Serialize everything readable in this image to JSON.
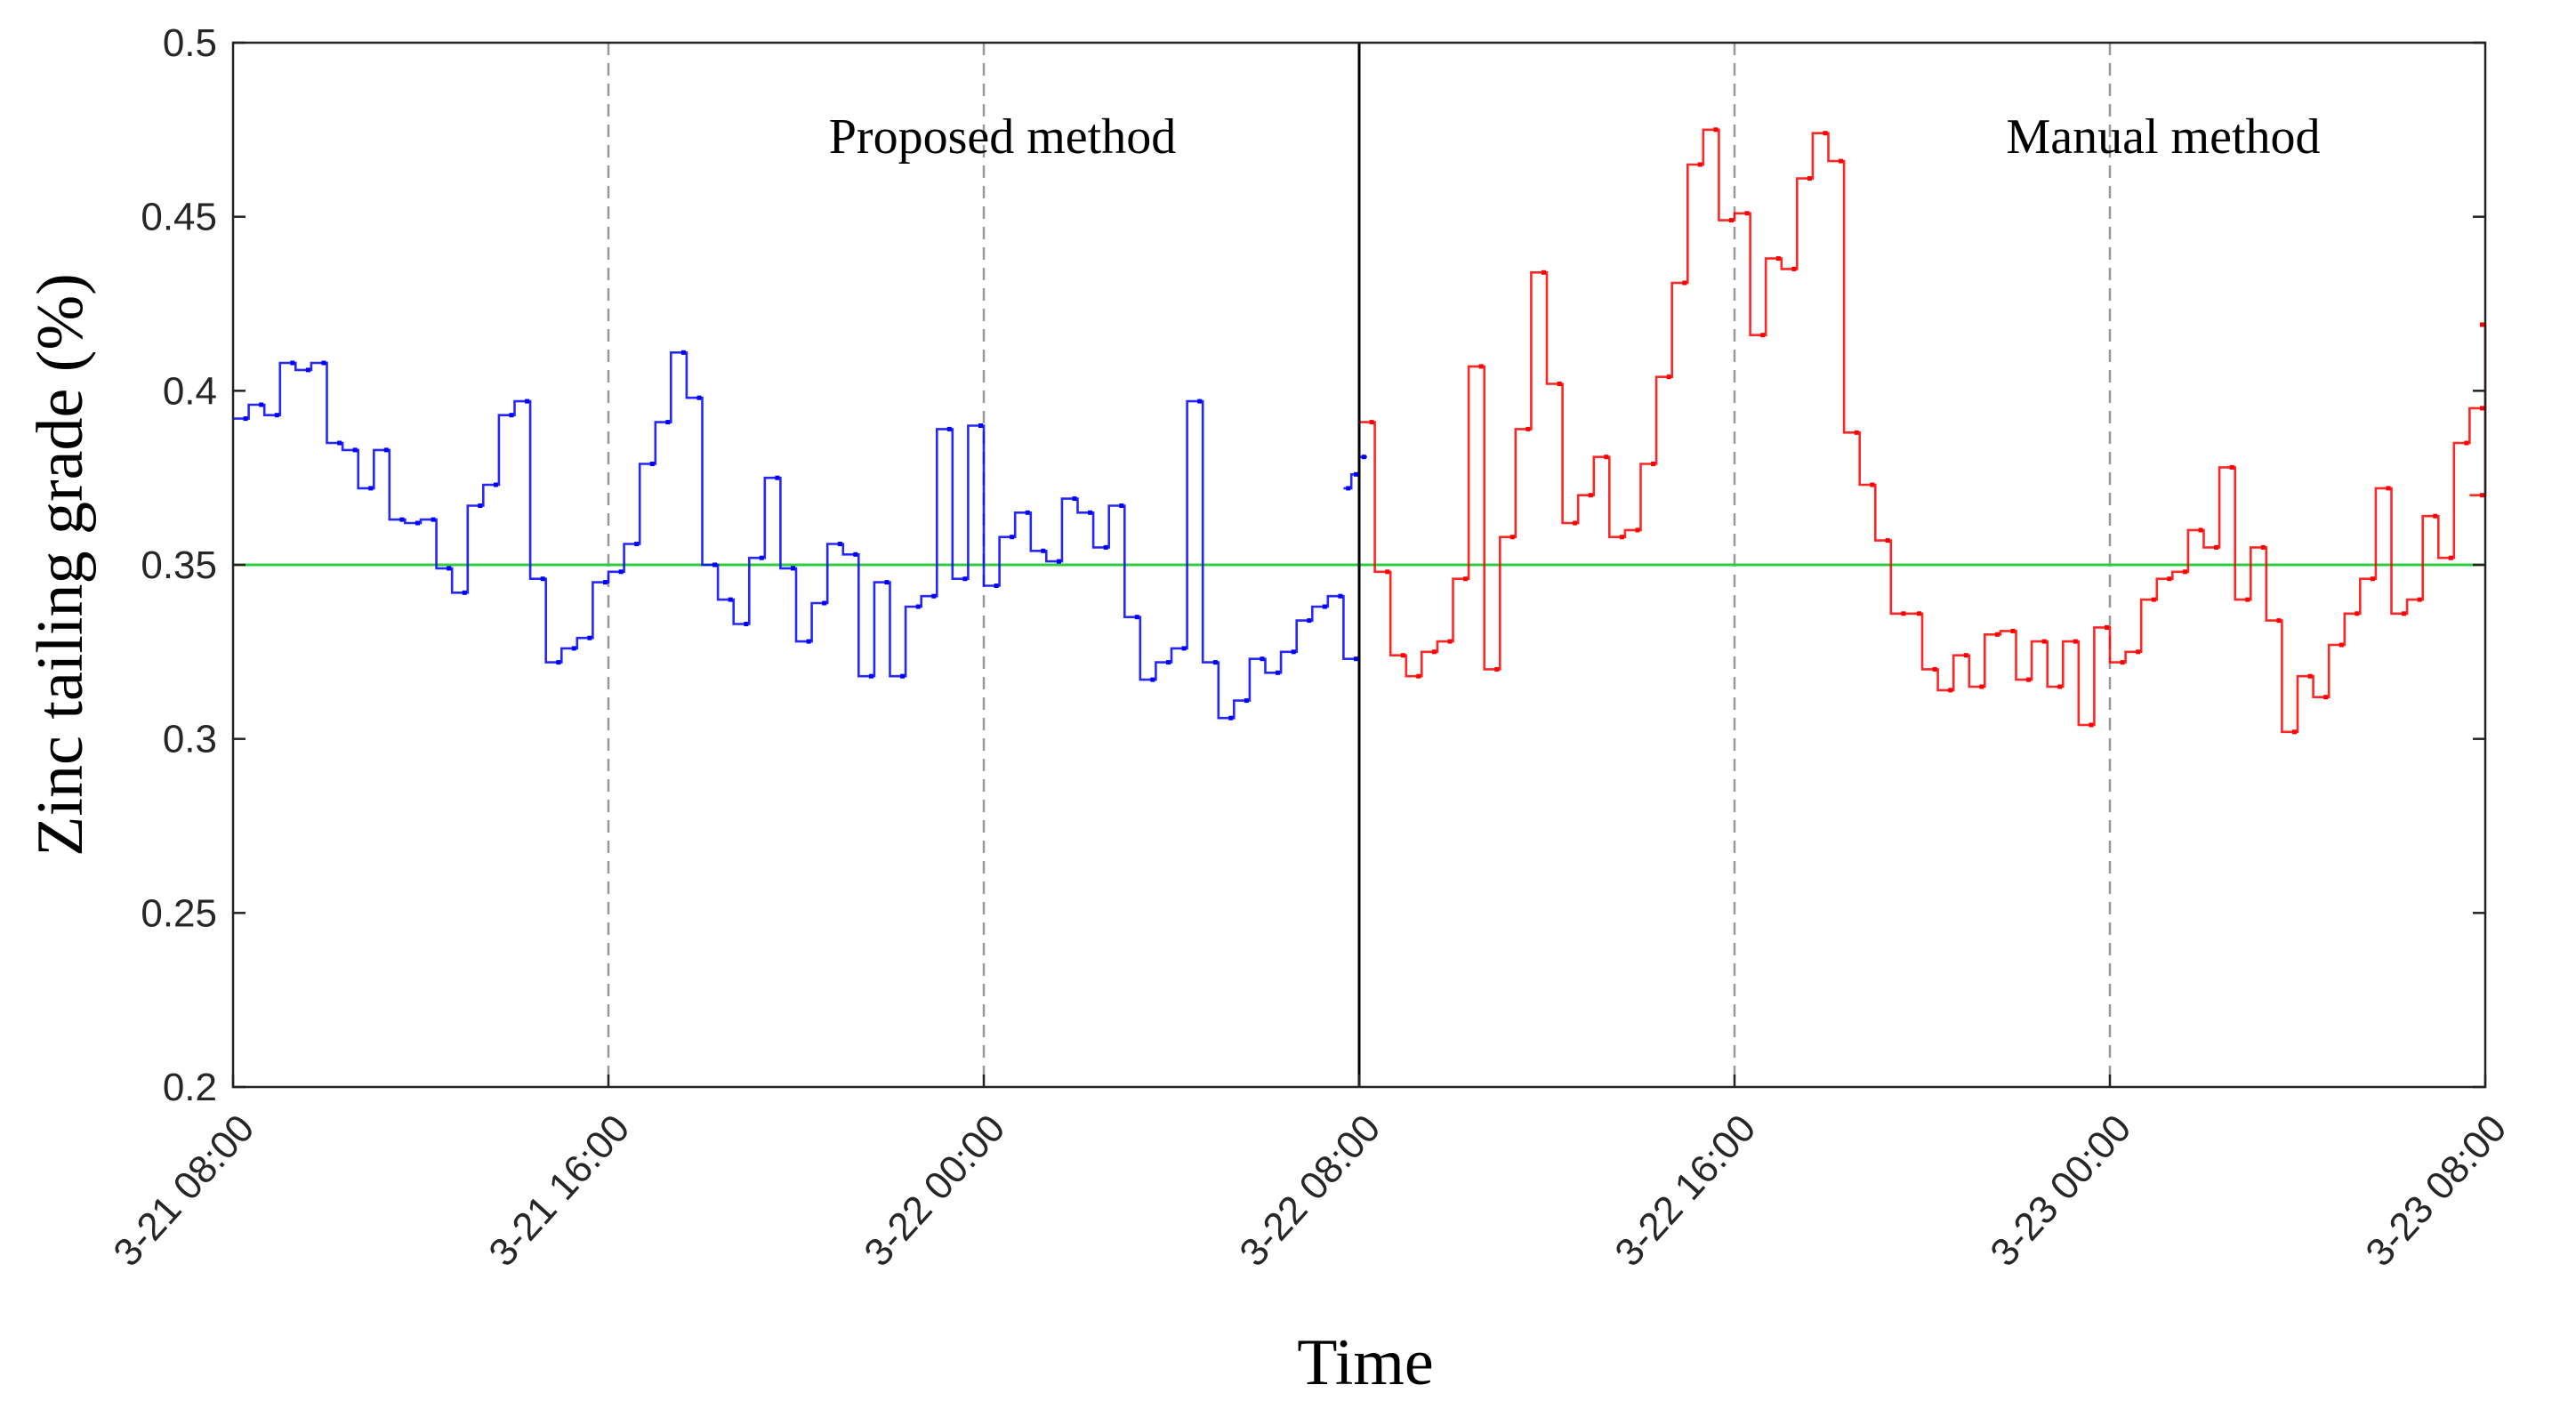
{
  "chart_data": {
    "type": "line",
    "title": "",
    "xlabel": "Time",
    "ylabel": "Zinc tailing grade (%)",
    "ylim": [
      0.2,
      0.5
    ],
    "yticks": [
      "0.2",
      "0.25",
      "0.3",
      "0.35",
      "0.4",
      "0.45",
      "0.5"
    ],
    "xticks": [
      "3-21 08:00",
      "3-21 16:00",
      "3-22 00:00",
      "3-22 08:00",
      "3-22 16:00",
      "3-23 00:00",
      "3-23 08:00"
    ],
    "xlim": [
      "3-21 08:00",
      "3-23 08:00"
    ],
    "grid": "dashed vertical lines at 16:00 and 00:00 ticks",
    "step": true,
    "reference_line": {
      "value": 0.35,
      "color": "#2ecc40"
    },
    "divider_at": "3-22 08:00",
    "annotations": [
      {
        "text": "Proposed method"
      },
      {
        "text": "Manual method"
      }
    ],
    "series": [
      {
        "color": "#0000ff",
        "x": [
          "3-21 08:00",
          "3-21 08:20",
          "3-21 08:40",
          "3-21 09:00",
          "3-21 09:20",
          "3-21 09:40",
          "3-21 10:00",
          "3-21 10:20",
          "3-21 10:40",
          "3-21 11:00",
          "3-21 11:20",
          "3-21 11:40",
          "3-21 12:00",
          "3-21 12:20",
          "3-21 12:40",
          "3-21 13:00",
          "3-21 13:20",
          "3-21 13:40",
          "3-21 14:00",
          "3-21 14:20",
          "3-21 14:40",
          "3-21 15:00",
          "3-21 15:20",
          "3-21 15:40",
          "3-21 16:00",
          "3-21 16:20",
          "3-21 16:40",
          "3-21 17:00",
          "3-21 17:20",
          "3-21 17:40",
          "3-21 18:00",
          "3-21 18:20",
          "3-21 18:40",
          "3-21 19:00",
          "3-21 19:20",
          "3-21 19:40",
          "3-21 20:00",
          "3-21 20:20",
          "3-21 20:40",
          "3-21 21:00",
          "3-21 21:20",
          "3-21 21:40",
          "3-21 22:00",
          "3-21 22:20",
          "3-21 22:40",
          "3-21 23:00",
          "3-21 23:20",
          "3-21 23:40",
          "3-22 00:00",
          "3-22 00:20",
          "3-22 00:40",
          "3-22 01:00",
          "3-22 01:20",
          "3-22 01:40",
          "3-22 02:00",
          "3-22 02:20",
          "3-22 02:40",
          "3-22 03:00",
          "3-22 03:20",
          "3-22 03:40",
          "3-22 04:00",
          "3-22 04:20",
          "3-22 04:40",
          "3-22 05:00",
          "3-22 05:20",
          "3-22 05:40",
          "3-22 06:00",
          "3-22 06:20",
          "3-22 06:40",
          "3-22 07:00",
          "3-22 07:20",
          "3-22 07:40"
        ],
        "values": [
          0.392,
          0.396,
          0.393,
          0.408,
          0.406,
          0.408,
          0.385,
          0.383,
          0.372,
          0.383,
          0.363,
          0.362,
          0.363,
          0.349,
          0.342,
          0.367,
          0.373,
          0.393,
          0.397,
          0.346,
          0.322,
          0.326,
          0.329,
          0.345,
          0.348,
          0.356,
          0.379,
          0.391,
          0.411,
          0.398,
          0.35,
          0.34,
          0.333,
          0.352,
          0.375,
          0.349,
          0.328,
          0.339,
          0.356,
          0.353,
          0.318,
          0.345,
          0.318,
          0.338,
          0.341,
          0.389,
          0.346,
          0.39,
          0.344,
          0.358,
          0.365,
          0.354,
          0.351,
          0.369,
          0.365,
          0.355,
          0.367,
          0.335,
          0.317,
          0.322,
          0.326,
          0.397,
          0.322,
          0.306,
          0.311,
          0.323,
          0.319,
          0.325,
          0.334,
          0.338,
          0.341,
          0.323
        ]
      },
      {
        "color": "#0000ff",
        "x": [
          "3-22 07:40",
          "3-22 07:50",
          "3-22 08:00"
        ],
        "values": [
          0.372,
          0.376,
          0.381
        ]
      },
      {
        "color": "#ff0000",
        "x": [
          "3-22 08:00",
          "3-22 08:20",
          "3-22 08:40",
          "3-22 09:00",
          "3-22 09:20",
          "3-22 09:40",
          "3-22 10:00",
          "3-22 10:20",
          "3-22 10:40",
          "3-22 11:00",
          "3-22 11:20",
          "3-22 11:40",
          "3-22 12:00",
          "3-22 12:20",
          "3-22 12:40",
          "3-22 13:00",
          "3-22 13:20",
          "3-22 13:40",
          "3-22 14:00",
          "3-22 14:20",
          "3-22 14:40",
          "3-22 15:00",
          "3-22 15:20",
          "3-22 15:40",
          "3-22 16:00",
          "3-22 16:20",
          "3-22 16:40",
          "3-22 17:00",
          "3-22 17:20",
          "3-22 17:40",
          "3-22 18:00",
          "3-22 18:20",
          "3-22 18:40",
          "3-22 19:00",
          "3-22 19:20",
          "3-22 19:40",
          "3-22 20:00",
          "3-22 20:20",
          "3-22 20:40",
          "3-22 21:00",
          "3-22 21:20",
          "3-22 21:40",
          "3-22 22:00",
          "3-22 22:20",
          "3-22 22:40",
          "3-22 23:00",
          "3-22 23:20",
          "3-22 23:40",
          "3-23 00:00",
          "3-23 00:20",
          "3-23 00:40",
          "3-23 01:00",
          "3-23 01:20",
          "3-23 01:40",
          "3-23 02:00",
          "3-23 02:20",
          "3-23 02:40",
          "3-23 03:00",
          "3-23 03:20",
          "3-23 03:40",
          "3-23 04:00",
          "3-23 04:20",
          "3-23 04:40",
          "3-23 05:00",
          "3-23 05:20",
          "3-23 05:40",
          "3-23 06:00",
          "3-23 06:20",
          "3-23 06:40",
          "3-23 07:00",
          "3-23 07:20",
          "3-23 07:40"
        ],
        "values": [
          0.391,
          0.348,
          0.324,
          0.318,
          0.325,
          0.328,
          0.346,
          0.407,
          0.32,
          0.358,
          0.389,
          0.434,
          0.402,
          0.362,
          0.37,
          0.381,
          0.358,
          0.36,
          0.379,
          0.404,
          0.431,
          0.465,
          0.475,
          0.449,
          0.451,
          0.416,
          0.438,
          0.435,
          0.461,
          0.474,
          0.466,
          0.388,
          0.373,
          0.357,
          0.336,
          0.336,
          0.32,
          0.314,
          0.324,
          0.315,
          0.33,
          0.331,
          0.317,
          0.328,
          0.315,
          0.328,
          0.304,
          0.332,
          0.322,
          0.325,
          0.34,
          0.346,
          0.348,
          0.36,
          0.355,
          0.378,
          0.34,
          0.355,
          0.334,
          0.302,
          0.318,
          0.312,
          0.327,
          0.336,
          0.346,
          0.372,
          0.336,
          0.34,
          0.364,
          0.352,
          0.385,
          0.395
        ]
      },
      {
        "color": "#ff0000",
        "x": [
          "3-23 07:40",
          "3-23 08:00"
        ],
        "values": [
          0.37,
          0.419
        ]
      }
    ]
  }
}
